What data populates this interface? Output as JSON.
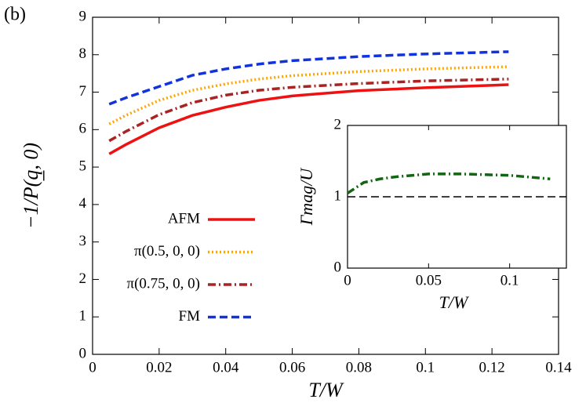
{
  "chart_data": [
    {
      "type": "line",
      "panel_label": "(b)",
      "x_label": "T/W",
      "y_label": "−1/P(q̲, 0)",
      "x": [
        0.005,
        0.01,
        0.02,
        0.03,
        0.04,
        0.05,
        0.06,
        0.08,
        0.1,
        0.125
      ],
      "series": [
        {
          "name": "AFM",
          "color": "#ee1111",
          "dash": "solid",
          "values": [
            5.35,
            5.6,
            6.05,
            6.38,
            6.6,
            6.78,
            6.9,
            7.04,
            7.12,
            7.2
          ]
        },
        {
          "name": "π(0.5, 0, 0)",
          "color": "#ffa500",
          "dash": "dotted",
          "values": [
            6.15,
            6.38,
            6.78,
            7.05,
            7.22,
            7.35,
            7.44,
            7.55,
            7.62,
            7.68
          ]
        },
        {
          "name": "π(0.75, 0, 0)",
          "color": "#aa2222",
          "dash": "dashdot",
          "values": [
            5.7,
            5.95,
            6.4,
            6.72,
            6.92,
            7.05,
            7.13,
            7.23,
            7.3,
            7.35
          ]
        },
        {
          "name": "FM",
          "color": "#1133dd",
          "dash": "dashed",
          "values": [
            6.68,
            6.85,
            7.15,
            7.45,
            7.62,
            7.75,
            7.84,
            7.95,
            8.02,
            8.08
          ]
        }
      ],
      "xlim": [
        0,
        0.14
      ],
      "xticks": [
        0,
        0.02,
        0.04,
        0.06,
        0.08,
        0.1,
        0.12,
        0.14
      ],
      "ylim": [
        0,
        9
      ],
      "yticks": [
        0,
        1,
        2,
        3,
        4,
        5,
        6,
        7,
        8,
        9
      ],
      "legend": "lower left"
    },
    {
      "type": "line",
      "x_label": "T/W",
      "y_label": "Γmag/U",
      "x": [
        0,
        0.01,
        0.02,
        0.03,
        0.05,
        0.07,
        0.1,
        0.125
      ],
      "series": [
        {
          "color": "#116611",
          "dash": "dashdot",
          "values": [
            1.05,
            1.2,
            1.25,
            1.28,
            1.32,
            1.32,
            1.3,
            1.25
          ]
        }
      ],
      "hline": {
        "value": 1,
        "color": "#000000",
        "dash": "dashed"
      },
      "xlim": [
        0,
        0.135
      ],
      "xticks": [
        0,
        0.05,
        0.1
      ],
      "ylim": [
        0,
        2
      ],
      "yticks": [
        0,
        1,
        2
      ]
    }
  ]
}
